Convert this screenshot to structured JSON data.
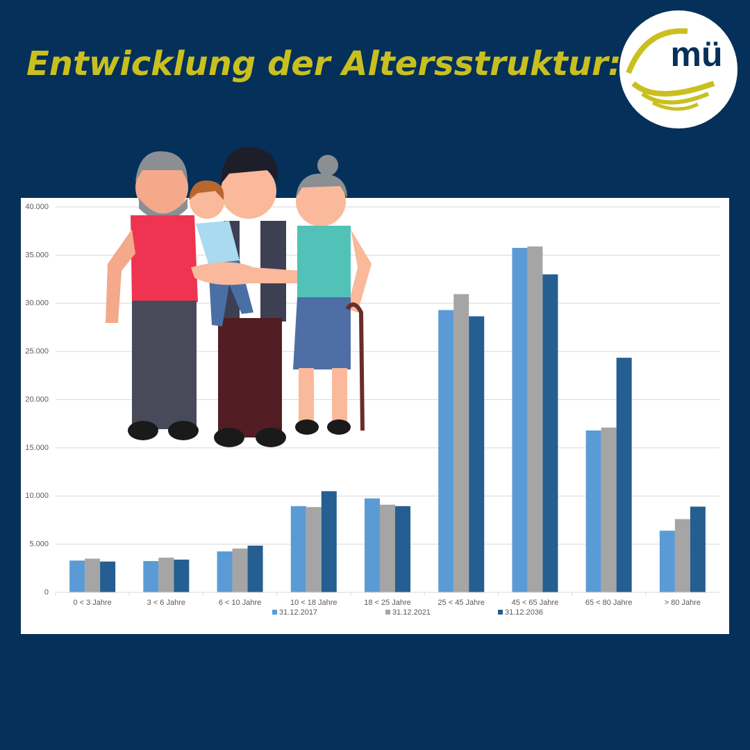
{
  "header": {
    "title": "Entwicklung der Altersstruktur:",
    "logo": "mü"
  },
  "chart_data": {
    "type": "bar",
    "categories": [
      "0 < 3 Jahre",
      "3 < 6 Jahre",
      "6 < 10 Jahre",
      "10 <  18 Jahre",
      "18 < 25 Jahre",
      "25 < 45 Jahre",
      "45 < 65 Jahre",
      "65 < 80 Jahre",
      "> 80 Jahre"
    ],
    "series": [
      {
        "name": "31.12.2017",
        "color": "#5b9bd5",
        "values": [
          3300,
          3250,
          4250,
          8950,
          9750,
          29300,
          35750,
          16800,
          6400
        ]
      },
      {
        "name": "31.12.2021",
        "color": "#a5a5a5",
        "values": [
          3500,
          3600,
          4550,
          8850,
          9100,
          30950,
          35900,
          17100,
          7600
        ]
      },
      {
        "name": "31.12.2036",
        "color": "#255e91",
        "values": [
          3200,
          3400,
          4850,
          10500,
          8950,
          28650,
          33000,
          24350,
          8900
        ]
      }
    ],
    "ylim": [
      0,
      40000
    ],
    "yticks": [
      0,
      {
        "value": 5000,
        "label": "5.000"
      },
      {
        "value": 10000,
        "label": "10.000"
      },
      {
        "value": 15000,
        "label": "15.000"
      },
      {
        "value": 20000,
        "label": "20.000"
      },
      {
        "value": 25000,
        "label": "25.000"
      },
      {
        "value": 30000,
        "label": "30.000"
      },
      {
        "value": 35000,
        "label": "35.000"
      },
      {
        "value": 40000,
        "label": "40.000"
      }
    ],
    "grid": true,
    "legend": "bottom"
  }
}
